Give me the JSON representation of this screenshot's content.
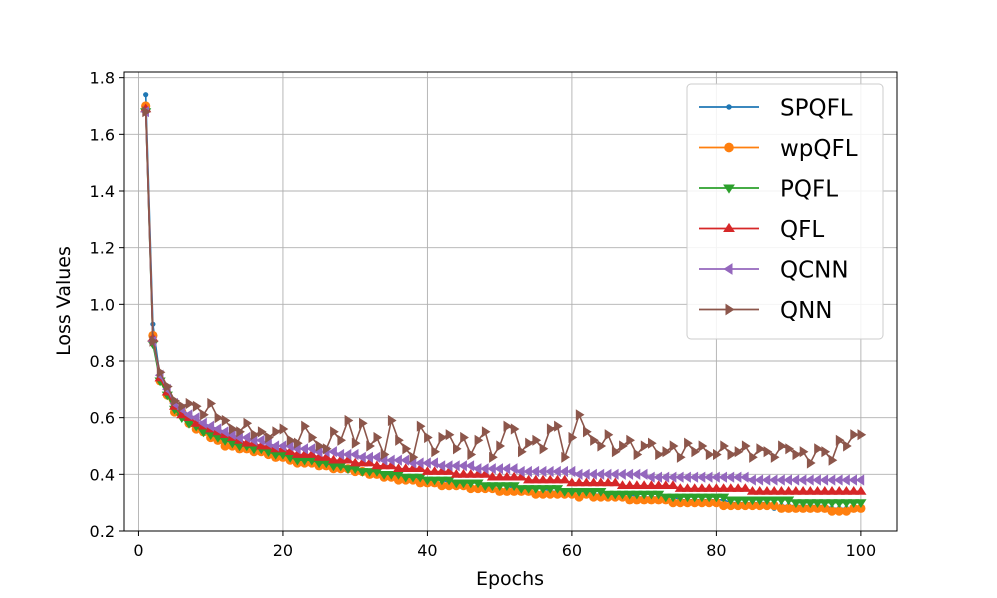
{
  "chart_data": {
    "type": "line",
    "xlabel": "Epochs",
    "ylabel": "Loss Values",
    "xlim": [
      -2,
      105
    ],
    "ylim": [
      0.2,
      1.82
    ],
    "xticks": [
      0,
      20,
      40,
      60,
      80,
      100
    ],
    "yticks": [
      0.2,
      0.4,
      0.6,
      0.8,
      1.0,
      1.2,
      1.4,
      1.6,
      1.8
    ],
    "ytick_labels": [
      "0.2",
      "0.4",
      "0.6",
      "0.8",
      "1.0",
      "1.2",
      "1.4",
      "1.6",
      "1.8"
    ],
    "grid": true,
    "legend_position": "top-right",
    "x_start": 1,
    "x_step": 1,
    "series": [
      {
        "name": "SPQFL",
        "color": "#1f77b4",
        "marker": "point",
        "values": [
          1.74,
          0.93,
          0.74,
          0.69,
          0.63,
          0.61,
          0.58,
          0.57,
          0.55,
          0.53,
          0.52,
          0.51,
          0.5,
          0.5,
          0.49,
          0.49,
          0.48,
          0.47,
          0.47,
          0.46,
          0.46,
          0.45,
          0.45,
          0.44,
          0.44,
          0.43,
          0.43,
          0.42,
          0.42,
          0.41,
          0.41,
          0.41,
          0.4,
          0.4,
          0.4,
          0.39,
          0.39,
          0.39,
          0.38,
          0.38,
          0.38,
          0.38,
          0.37,
          0.37,
          0.37,
          0.37,
          0.37,
          0.36,
          0.36,
          0.36,
          0.36,
          0.35,
          0.35,
          0.35,
          0.35,
          0.35,
          0.34,
          0.34,
          0.34,
          0.34,
          0.34,
          0.34,
          0.33,
          0.33,
          0.33,
          0.33,
          0.33,
          0.33,
          0.32,
          0.32,
          0.32,
          0.32,
          0.32,
          0.32,
          0.31,
          0.31,
          0.31,
          0.31,
          0.31,
          0.31,
          0.31,
          0.3,
          0.3,
          0.3,
          0.3,
          0.3,
          0.3,
          0.28,
          0.29,
          0.29,
          0.29,
          0.29,
          0.29,
          0.29,
          0.29,
          0.28,
          0.28,
          0.28,
          0.28,
          0.28
        ]
      },
      {
        "name": "wpQFL",
        "color": "#ff7f0e",
        "marker": "circle",
        "values": [
          1.7,
          0.89,
          0.73,
          0.68,
          0.62,
          0.62,
          0.58,
          0.56,
          0.55,
          0.53,
          0.52,
          0.5,
          0.5,
          0.49,
          0.49,
          0.48,
          0.48,
          0.47,
          0.46,
          0.46,
          0.45,
          0.44,
          0.44,
          0.44,
          0.43,
          0.43,
          0.42,
          0.42,
          0.42,
          0.41,
          0.41,
          0.4,
          0.4,
          0.39,
          0.39,
          0.38,
          0.38,
          0.38,
          0.37,
          0.37,
          0.37,
          0.36,
          0.36,
          0.36,
          0.36,
          0.35,
          0.35,
          0.35,
          0.35,
          0.34,
          0.34,
          0.34,
          0.34,
          0.34,
          0.33,
          0.33,
          0.33,
          0.33,
          0.33,
          0.33,
          0.32,
          0.33,
          0.32,
          0.32,
          0.32,
          0.32,
          0.32,
          0.31,
          0.31,
          0.31,
          0.31,
          0.31,
          0.31,
          0.3,
          0.3,
          0.3,
          0.3,
          0.3,
          0.3,
          0.3,
          0.29,
          0.29,
          0.29,
          0.29,
          0.29,
          0.29,
          0.29,
          0.29,
          0.28,
          0.28,
          0.28,
          0.28,
          0.28,
          0.28,
          0.28,
          0.27,
          0.27,
          0.27,
          0.28,
          0.28
        ]
      },
      {
        "name": "PQFL",
        "color": "#2ca02c",
        "marker": "triangle-down",
        "values": [
          1.68,
          0.86,
          0.73,
          0.68,
          0.63,
          0.6,
          0.58,
          0.57,
          0.55,
          0.54,
          0.53,
          0.52,
          0.51,
          0.5,
          0.5,
          0.49,
          0.49,
          0.48,
          0.47,
          0.47,
          0.46,
          0.45,
          0.45,
          0.45,
          0.44,
          0.44,
          0.43,
          0.43,
          0.42,
          0.42,
          0.41,
          0.41,
          0.41,
          0.4,
          0.4,
          0.4,
          0.39,
          0.39,
          0.39,
          0.38,
          0.38,
          0.38,
          0.38,
          0.37,
          0.37,
          0.37,
          0.37,
          0.36,
          0.36,
          0.36,
          0.36,
          0.36,
          0.35,
          0.35,
          0.35,
          0.35,
          0.35,
          0.35,
          0.34,
          0.34,
          0.34,
          0.34,
          0.34,
          0.34,
          0.33,
          0.33,
          0.33,
          0.33,
          0.33,
          0.33,
          0.33,
          0.33,
          0.32,
          0.32,
          0.32,
          0.32,
          0.32,
          0.32,
          0.32,
          0.32,
          0.32,
          0.31,
          0.31,
          0.31,
          0.31,
          0.31,
          0.31,
          0.31,
          0.31,
          0.31,
          0.3,
          0.3,
          0.3,
          0.3,
          0.3,
          0.3,
          0.3,
          0.3,
          0.3,
          0.3
        ]
      },
      {
        "name": "QFL",
        "color": "#d62728",
        "marker": "triangle-up",
        "values": [
          1.69,
          0.88,
          0.74,
          0.69,
          0.64,
          0.61,
          0.6,
          0.58,
          0.57,
          0.56,
          0.55,
          0.54,
          0.53,
          0.52,
          0.51,
          0.51,
          0.5,
          0.5,
          0.49,
          0.49,
          0.48,
          0.47,
          0.47,
          0.47,
          0.46,
          0.46,
          0.45,
          0.45,
          0.45,
          0.44,
          0.44,
          0.44,
          0.43,
          0.43,
          0.43,
          0.42,
          0.42,
          0.42,
          0.42,
          0.41,
          0.41,
          0.41,
          0.41,
          0.4,
          0.4,
          0.4,
          0.4,
          0.4,
          0.39,
          0.39,
          0.39,
          0.39,
          0.39,
          0.38,
          0.38,
          0.38,
          0.38,
          0.38,
          0.38,
          0.37,
          0.37,
          0.37,
          0.37,
          0.37,
          0.37,
          0.37,
          0.36,
          0.36,
          0.36,
          0.36,
          0.36,
          0.36,
          0.36,
          0.36,
          0.35,
          0.35,
          0.35,
          0.35,
          0.35,
          0.35,
          0.35,
          0.35,
          0.35,
          0.35,
          0.34,
          0.34,
          0.34,
          0.34,
          0.34,
          0.34,
          0.34,
          0.34,
          0.34,
          0.34,
          0.34,
          0.34,
          0.34,
          0.34,
          0.34,
          0.34
        ]
      },
      {
        "name": "QCNN",
        "color": "#9467bd",
        "marker": "triangle-left",
        "values": [
          1.68,
          0.87,
          0.75,
          0.7,
          0.65,
          0.63,
          0.61,
          0.6,
          0.58,
          0.57,
          0.56,
          0.55,
          0.54,
          0.53,
          0.53,
          0.52,
          0.52,
          0.51,
          0.5,
          0.5,
          0.5,
          0.49,
          0.49,
          0.49,
          0.48,
          0.48,
          0.48,
          0.47,
          0.47,
          0.47,
          0.46,
          0.46,
          0.46,
          0.45,
          0.45,
          0.45,
          0.45,
          0.44,
          0.44,
          0.44,
          0.44,
          0.43,
          0.43,
          0.43,
          0.43,
          0.43,
          0.42,
          0.42,
          0.42,
          0.42,
          0.42,
          0.42,
          0.41,
          0.41,
          0.41,
          0.41,
          0.41,
          0.41,
          0.41,
          0.41,
          0.4,
          0.4,
          0.4,
          0.4,
          0.4,
          0.4,
          0.4,
          0.4,
          0.4,
          0.4,
          0.39,
          0.39,
          0.39,
          0.39,
          0.39,
          0.39,
          0.39,
          0.39,
          0.39,
          0.39,
          0.39,
          0.39,
          0.39,
          0.39,
          0.38,
          0.38,
          0.38,
          0.38,
          0.38,
          0.38,
          0.38,
          0.38,
          0.38,
          0.38,
          0.38,
          0.38,
          0.38,
          0.38,
          0.38,
          0.38
        ]
      },
      {
        "name": "QNN",
        "color": "#8c564b",
        "marker": "triangle-right",
        "values": [
          1.68,
          0.87,
          0.76,
          0.71,
          0.66,
          0.64,
          0.65,
          0.64,
          0.61,
          0.65,
          0.6,
          0.59,
          0.56,
          0.55,
          0.58,
          0.54,
          0.55,
          0.53,
          0.55,
          0.56,
          0.52,
          0.51,
          0.57,
          0.53,
          0.5,
          0.49,
          0.55,
          0.52,
          0.59,
          0.51,
          0.58,
          0.5,
          0.53,
          0.47,
          0.59,
          0.52,
          0.49,
          0.46,
          0.57,
          0.53,
          0.48,
          0.53,
          0.54,
          0.49,
          0.53,
          0.47,
          0.52,
          0.55,
          0.46,
          0.5,
          0.57,
          0.56,
          0.48,
          0.51,
          0.52,
          0.49,
          0.56,
          0.57,
          0.46,
          0.53,
          0.61,
          0.55,
          0.52,
          0.5,
          0.54,
          0.48,
          0.5,
          0.52,
          0.47,
          0.5,
          0.51,
          0.47,
          0.48,
          0.5,
          0.46,
          0.51,
          0.48,
          0.5,
          0.47,
          0.47,
          0.5,
          0.47,
          0.48,
          0.5,
          0.46,
          0.49,
          0.48,
          0.46,
          0.5,
          0.49,
          0.47,
          0.48,
          0.44,
          0.49,
          0.48,
          0.45,
          0.52,
          0.5,
          0.54,
          0.54
        ]
      }
    ]
  }
}
